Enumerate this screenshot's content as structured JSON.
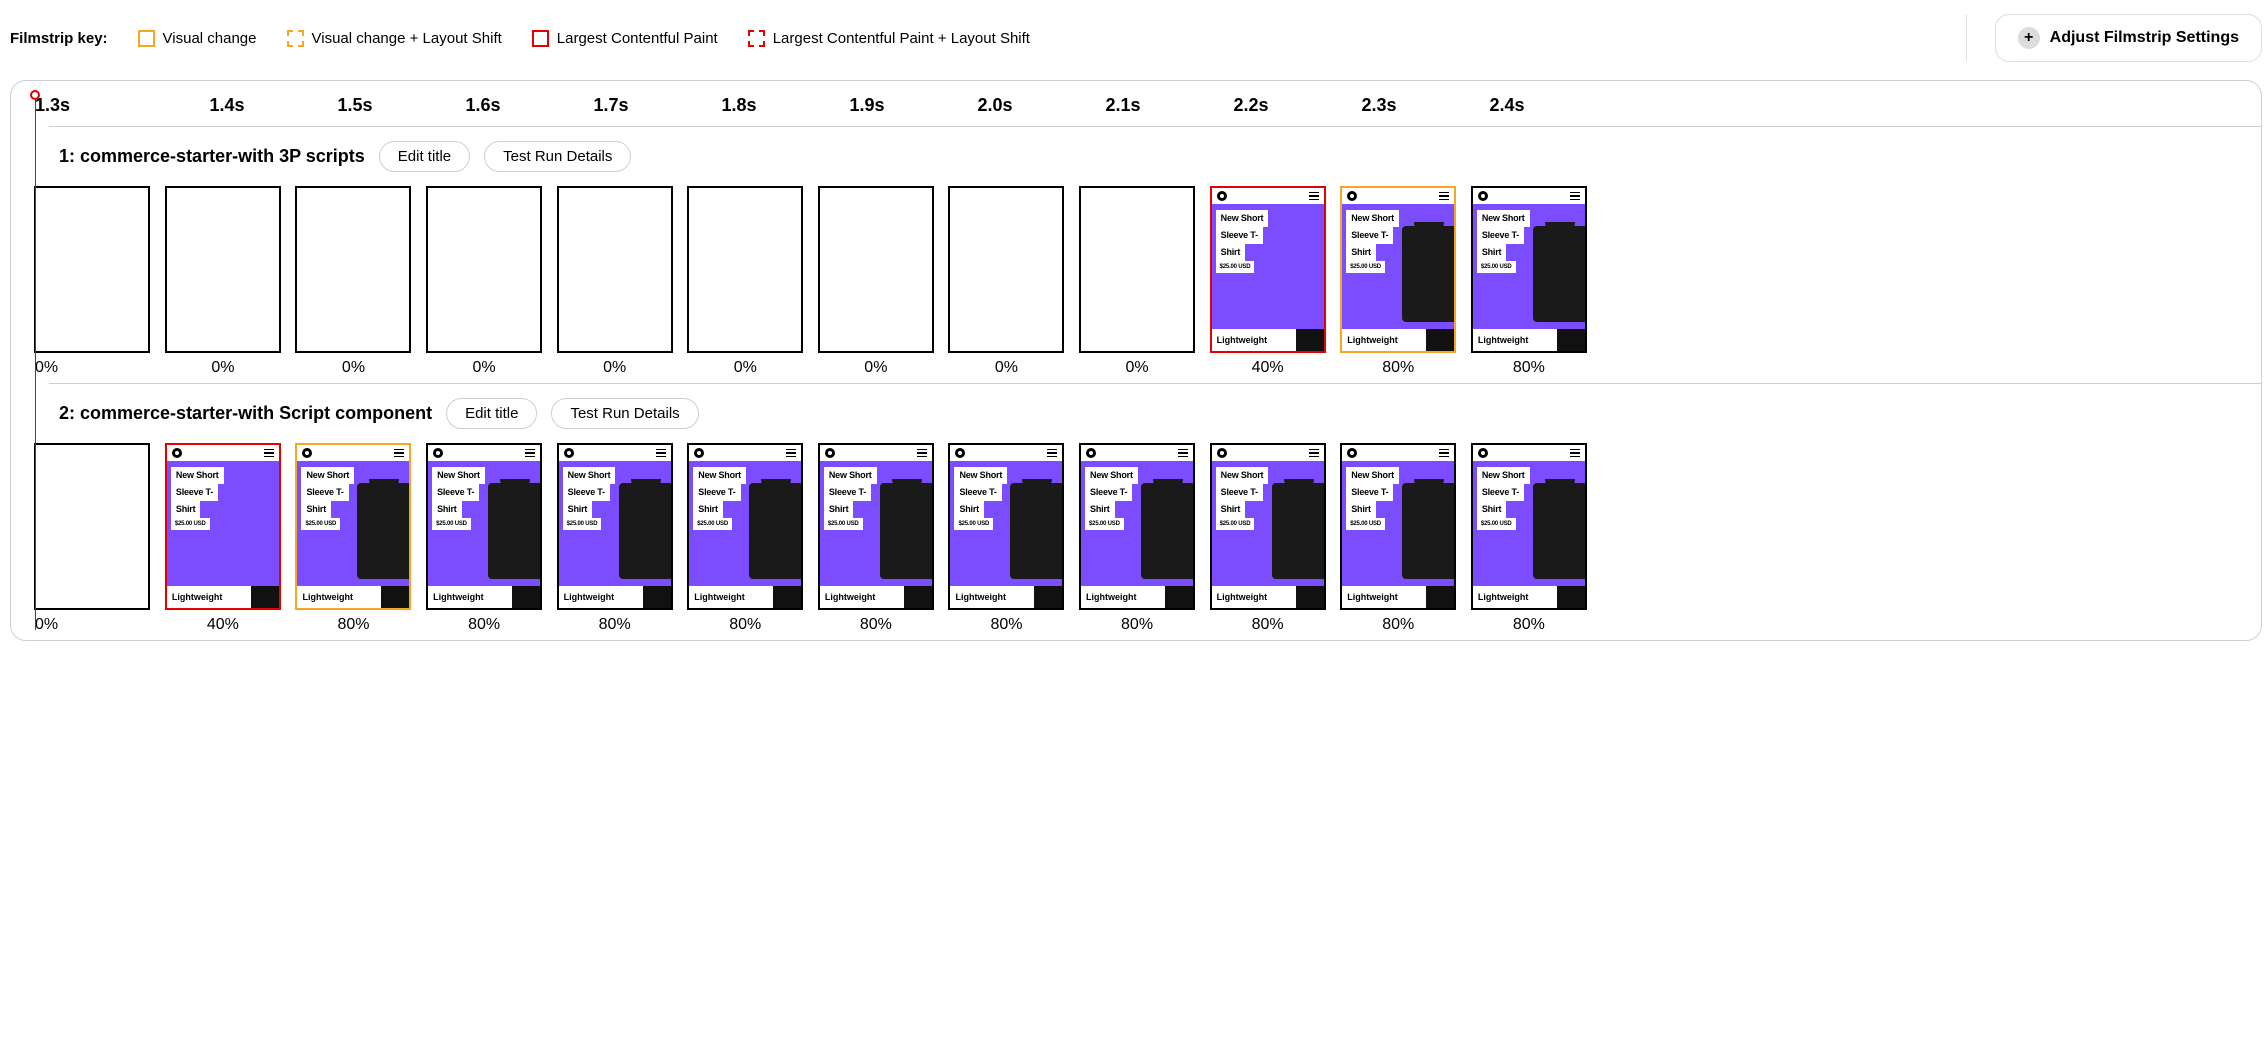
{
  "colors": {
    "orange": "#f5a623",
    "red": "#e60000",
    "purple": "#7c4dff",
    "black": "#000000",
    "darkFill": "#1a1a1a"
  },
  "legend": {
    "title": "Filmstrip key:",
    "items": [
      {
        "label": "Visual change",
        "style": "solid-orange"
      },
      {
        "label": "Visual change + Layout Shift",
        "style": "dashed-orange"
      },
      {
        "label": "Largest Contentful Paint",
        "style": "solid-red"
      },
      {
        "label": "Largest Contentful Paint + Layout Shift",
        "style": "dashed-red"
      }
    ]
  },
  "adjust_button_label": "Adjust Filmstrip Settings",
  "timeline": [
    "1.3s",
    "1.4s",
    "1.5s",
    "1.6s",
    "1.7s",
    "1.8s",
    "1.9s",
    "2.0s",
    "2.1s",
    "2.2s",
    "2.3s",
    "2.4s"
  ],
  "edit_title_label": "Edit title",
  "test_run_details_label": "Test Run Details",
  "product_thumb": {
    "title_line1": "New Short",
    "title_line2": "Sleeve T-",
    "title_line3": "Shirt",
    "price": "$25.00 USD",
    "badge": "Lightweight"
  },
  "runs": [
    {
      "title": "1: commerce-starter-with 3P scripts",
      "frames": [
        {
          "pct": "0%",
          "state": "blank",
          "border": "black",
          "align": "left"
        },
        {
          "pct": "0%",
          "state": "blank",
          "border": "black",
          "align": "center"
        },
        {
          "pct": "0%",
          "state": "blank",
          "border": "black",
          "align": "center"
        },
        {
          "pct": "0%",
          "state": "blank",
          "border": "black",
          "align": "center"
        },
        {
          "pct": "0%",
          "state": "blank",
          "border": "black",
          "align": "center"
        },
        {
          "pct": "0%",
          "state": "blank",
          "border": "black",
          "align": "center"
        },
        {
          "pct": "0%",
          "state": "blank",
          "border": "black",
          "align": "center"
        },
        {
          "pct": "0%",
          "state": "blank",
          "border": "black",
          "align": "center"
        },
        {
          "pct": "0%",
          "state": "blank",
          "border": "black",
          "align": "center"
        },
        {
          "pct": "40%",
          "state": "lcp",
          "border": "red",
          "align": "center"
        },
        {
          "pct": "80%",
          "state": "full",
          "border": "orange",
          "align": "center"
        },
        {
          "pct": "80%",
          "state": "full",
          "border": "black",
          "align": "center"
        }
      ]
    },
    {
      "title": "2: commerce-starter-with Script component",
      "frames": [
        {
          "pct": "0%",
          "state": "blank",
          "border": "black",
          "align": "left"
        },
        {
          "pct": "40%",
          "state": "lcp",
          "border": "red",
          "align": "center"
        },
        {
          "pct": "80%",
          "state": "full",
          "border": "orange",
          "align": "center"
        },
        {
          "pct": "80%",
          "state": "full",
          "border": "black",
          "align": "center"
        },
        {
          "pct": "80%",
          "state": "full",
          "border": "black",
          "align": "center"
        },
        {
          "pct": "80%",
          "state": "full",
          "border": "black",
          "align": "center"
        },
        {
          "pct": "80%",
          "state": "full",
          "border": "black",
          "align": "center"
        },
        {
          "pct": "80%",
          "state": "full",
          "border": "black",
          "align": "center"
        },
        {
          "pct": "80%",
          "state": "full",
          "border": "black",
          "align": "center"
        },
        {
          "pct": "80%",
          "state": "full",
          "border": "black",
          "align": "center"
        },
        {
          "pct": "80%",
          "state": "full",
          "border": "black",
          "align": "center"
        },
        {
          "pct": "80%",
          "state": "full",
          "border": "black",
          "align": "center"
        }
      ]
    }
  ]
}
